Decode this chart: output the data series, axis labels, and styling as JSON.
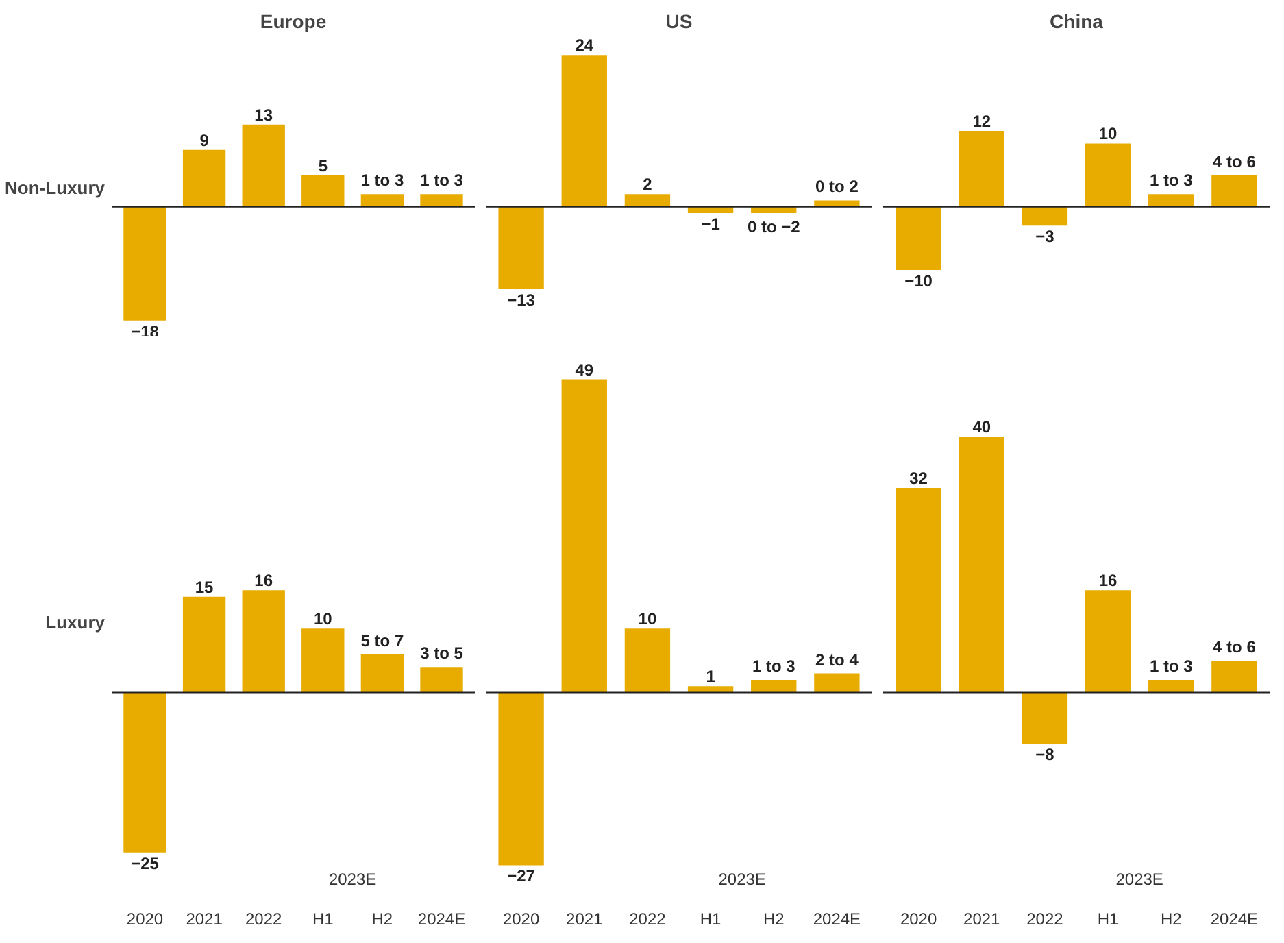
{
  "chart_data": [
    {
      "type": "bar",
      "title": "Europe",
      "ylabel": "Non-Luxury",
      "categories": [
        "2020",
        "2021",
        "2022",
        "H1",
        "H2",
        "2024E"
      ],
      "values": [
        -18,
        9,
        13,
        5,
        2,
        2
      ],
      "value_labels": [
        "−18",
        "9",
        "13",
        "5",
        null,
        null
      ],
      "annotations": [
        "1 to 3",
        "1 to 3"
      ],
      "color": "#e8ab00",
      "tick_labels": false
    },
    {
      "type": "bar",
      "title": "US",
      "categories": [
        "2020",
        "2021",
        "2022",
        "H1",
        "H2",
        "2024E"
      ],
      "values": [
        -13,
        24,
        2,
        -1,
        -1,
        1
      ],
      "value_labels": [
        "−13",
        "24",
        "2",
        "−1",
        null,
        null
      ],
      "annotations": [
        "0 to −2",
        "0 to 2"
      ],
      "color": "#e8ab00",
      "tick_labels": false
    },
    {
      "type": "bar",
      "title": "China",
      "categories": [
        "2020",
        "2021",
        "2022",
        "H1",
        "H2",
        "2024E"
      ],
      "values": [
        -10,
        12,
        -3,
        10,
        2,
        5
      ],
      "value_labels": [
        "−10",
        "12",
        "−3",
        "10",
        null,
        null
      ],
      "annotations": [
        "1 to 3",
        "4 to 6"
      ],
      "color": "#e8ab00",
      "tick_labels": false
    },
    {
      "type": "bar",
      "ylabel": "Luxury",
      "categories": [
        "2020",
        "2021",
        "2022",
        "H1",
        "H2",
        "2024E"
      ],
      "values": [
        -25,
        15,
        16,
        10,
        6,
        4
      ],
      "value_labels": [
        "−25",
        "15",
        "16",
        "10",
        null,
        null
      ],
      "annotations": [
        "2023E",
        "5 to 7",
        "3 to 5"
      ],
      "color": "#e8ab00",
      "tick_labels": "x"
    },
    {
      "type": "bar",
      "categories": [
        "2020",
        "2021",
        "2022",
        "H1",
        "H2",
        "2024E"
      ],
      "values": [
        -27,
        49,
        10,
        1,
        2,
        3
      ],
      "value_labels": [
        "−27",
        "49",
        "10",
        "1",
        null,
        null
      ],
      "annotations": [
        "2023E",
        "1 to 3",
        "2 to 4"
      ],
      "color": "#e8ab00",
      "tick_labels": "x"
    },
    {
      "type": "bar",
      "categories": [
        "2020",
        "2021",
        "2022",
        "H1",
        "H2",
        "2024E"
      ],
      "values": [
        32,
        40,
        -8,
        16,
        2,
        5
      ],
      "value_labels": [
        "32",
        "40",
        "−8",
        "16",
        null,
        null
      ],
      "annotations": [
        "2023E",
        "1 to 3",
        "4 to 6"
      ],
      "color": "#e8ab00",
      "tick_labels": "x"
    }
  ]
}
